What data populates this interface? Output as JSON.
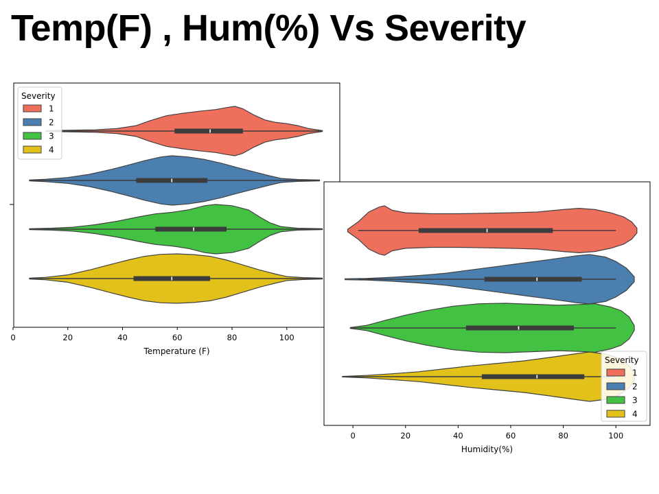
{
  "slide": {
    "title": "Temp(F) , Hum(%) Vs Severity"
  },
  "legend_title": "Severity",
  "severity_levels": [
    "1",
    "2",
    "3",
    "4"
  ],
  "colors": [
    "#ef6f5d",
    "#4a7fb0",
    "#43c143",
    "#e2c11a"
  ],
  "chart_data": [
    {
      "type": "violin",
      "orientation": "horizontal",
      "xlabel": "Temperature (F)",
      "xlim": [
        0,
        120
      ],
      "xticks": [
        0,
        20,
        40,
        60,
        80,
        100
      ],
      "xtick_labels": [
        "0",
        "20",
        "40",
        "60",
        "80",
        "100"
      ],
      "grid": false,
      "legend": {
        "title": "Severity",
        "placement": "upper-left",
        "entries": [
          "1",
          "2",
          "3",
          "4"
        ]
      },
      "series": [
        {
          "name": "1",
          "color": "#ef6f5d",
          "min": 12,
          "q1": 59,
          "median": 72,
          "q3": 84,
          "max": 113,
          "density": [
            [
              12,
              0.02
            ],
            [
              20,
              0.03
            ],
            [
              30,
              0.05
            ],
            [
              38,
              0.1
            ],
            [
              45,
              0.22
            ],
            [
              50,
              0.42
            ],
            [
              56,
              0.62
            ],
            [
              62,
              0.72
            ],
            [
              68,
              0.8
            ],
            [
              74,
              0.87
            ],
            [
              78,
              0.95
            ],
            [
              81,
              1.0
            ],
            [
              84,
              0.9
            ],
            [
              88,
              0.65
            ],
            [
              92,
              0.45
            ],
            [
              96,
              0.35
            ],
            [
              100,
              0.3
            ],
            [
              104,
              0.22
            ],
            [
              108,
              0.1
            ],
            [
              113,
              0.02
            ]
          ]
        },
        {
          "name": "2",
          "color": "#4a7fb0",
          "min": 6,
          "q1": 45,
          "median": 58,
          "q3": 71,
          "max": 112,
          "density": [
            [
              6,
              0.02
            ],
            [
              12,
              0.05
            ],
            [
              20,
              0.12
            ],
            [
              28,
              0.25
            ],
            [
              36,
              0.45
            ],
            [
              42,
              0.62
            ],
            [
              48,
              0.8
            ],
            [
              54,
              0.95
            ],
            [
              58,
              1.0
            ],
            [
              64,
              0.95
            ],
            [
              70,
              0.85
            ],
            [
              76,
              0.7
            ],
            [
              82,
              0.52
            ],
            [
              88,
              0.35
            ],
            [
              94,
              0.18
            ],
            [
              98,
              0.08
            ],
            [
              104,
              0.04
            ],
            [
              112,
              0.02
            ]
          ]
        },
        {
          "name": "3",
          "color": "#43c143",
          "min": 6,
          "q1": 52,
          "median": 66,
          "q3": 78,
          "max": 113,
          "density": [
            [
              6,
              0.02
            ],
            [
              14,
              0.04
            ],
            [
              22,
              0.08
            ],
            [
              30,
              0.18
            ],
            [
              38,
              0.32
            ],
            [
              46,
              0.5
            ],
            [
              52,
              0.62
            ],
            [
              58,
              0.68
            ],
            [
              64,
              0.78
            ],
            [
              70,
              0.95
            ],
            [
              74,
              1.0
            ],
            [
              80,
              0.95
            ],
            [
              86,
              0.78
            ],
            [
              90,
              0.5
            ],
            [
              94,
              0.25
            ],
            [
              98,
              0.1
            ],
            [
              104,
              0.04
            ],
            [
              113,
              0.02
            ]
          ]
        },
        {
          "name": "4",
          "color": "#e2c11a",
          "min": 6,
          "q1": 44,
          "median": 58,
          "q3": 72,
          "max": 113,
          "density": [
            [
              6,
              0.02
            ],
            [
              12,
              0.05
            ],
            [
              20,
              0.15
            ],
            [
              28,
              0.35
            ],
            [
              36,
              0.58
            ],
            [
              42,
              0.75
            ],
            [
              48,
              0.9
            ],
            [
              54,
              0.98
            ],
            [
              60,
              1.0
            ],
            [
              66,
              0.97
            ],
            [
              72,
              0.9
            ],
            [
              78,
              0.75
            ],
            [
              84,
              0.55
            ],
            [
              90,
              0.35
            ],
            [
              96,
              0.18
            ],
            [
              100,
              0.08
            ],
            [
              106,
              0.04
            ],
            [
              113,
              0.02
            ]
          ]
        }
      ]
    },
    {
      "type": "violin",
      "orientation": "horizontal",
      "xlabel": "Humidity(%)",
      "xlim": [
        -11,
        113
      ],
      "xticks": [
        0,
        20,
        40,
        60,
        80,
        100
      ],
      "xtick_labels": [
        "0",
        "20",
        "40",
        "60",
        "80",
        "100"
      ],
      "grid": false,
      "legend": {
        "title": "Severity",
        "placement": "lower-right",
        "entries": [
          "1",
          "2",
          "3",
          "4"
        ]
      },
      "series": [
        {
          "name": "1",
          "color": "#ef6f5d",
          "min": 2,
          "q1": 25,
          "median": 51,
          "q3": 76,
          "max": 100,
          "density": [
            [
              -2,
              0.05
            ],
            [
              2,
              0.35
            ],
            [
              6,
              0.75
            ],
            [
              10,
              0.95
            ],
            [
              12,
              1.0
            ],
            [
              15,
              0.82
            ],
            [
              20,
              0.72
            ],
            [
              30,
              0.68
            ],
            [
              40,
              0.68
            ],
            [
              50,
              0.7
            ],
            [
              60,
              0.72
            ],
            [
              70,
              0.75
            ],
            [
              80,
              0.85
            ],
            [
              86,
              0.9
            ],
            [
              92,
              0.85
            ],
            [
              98,
              0.72
            ],
            [
              103,
              0.55
            ],
            [
              106,
              0.35
            ],
            [
              108,
              0.1
            ]
          ]
        },
        {
          "name": "2",
          "color": "#4a7fb0",
          "min": 2,
          "q1": 50,
          "median": 70,
          "q3": 87,
          "max": 100,
          "density": [
            [
              -3,
              0.02
            ],
            [
              5,
              0.03
            ],
            [
              15,
              0.08
            ],
            [
              25,
              0.15
            ],
            [
              35,
              0.24
            ],
            [
              45,
              0.38
            ],
            [
              55,
              0.52
            ],
            [
              65,
              0.66
            ],
            [
              75,
              0.8
            ],
            [
              85,
              0.95
            ],
            [
              90,
              1.0
            ],
            [
              96,
              0.9
            ],
            [
              100,
              0.72
            ],
            [
              104,
              0.45
            ],
            [
              107,
              0.1
            ]
          ]
        },
        {
          "name": "3",
          "color": "#43c143",
          "min": -1,
          "q1": 43,
          "median": 63,
          "q3": 84,
          "max": 100,
          "density": [
            [
              -1,
              0.02
            ],
            [
              5,
              0.1
            ],
            [
              12,
              0.3
            ],
            [
              20,
              0.52
            ],
            [
              28,
              0.7
            ],
            [
              38,
              0.88
            ],
            [
              48,
              0.98
            ],
            [
              58,
              1.0
            ],
            [
              68,
              0.96
            ],
            [
              78,
              0.92
            ],
            [
              86,
              0.95
            ],
            [
              92,
              0.98
            ],
            [
              98,
              0.85
            ],
            [
              102,
              0.7
            ],
            [
              105,
              0.45
            ],
            [
              107,
              0.1
            ]
          ]
        },
        {
          "name": "4",
          "color": "#e2c11a",
          "min": -4,
          "q1": 49,
          "median": 70,
          "q3": 88,
          "max": 100,
          "density": [
            [
              -4,
              0.01
            ],
            [
              5,
              0.05
            ],
            [
              15,
              0.12
            ],
            [
              25,
              0.2
            ],
            [
              35,
              0.32
            ],
            [
              45,
              0.44
            ],
            [
              55,
              0.54
            ],
            [
              65,
              0.64
            ],
            [
              75,
              0.78
            ],
            [
              85,
              0.93
            ],
            [
              90,
              1.0
            ],
            [
              96,
              0.92
            ],
            [
              101,
              0.75
            ],
            [
              105,
              0.45
            ],
            [
              107,
              0.15
            ]
          ]
        }
      ]
    }
  ]
}
